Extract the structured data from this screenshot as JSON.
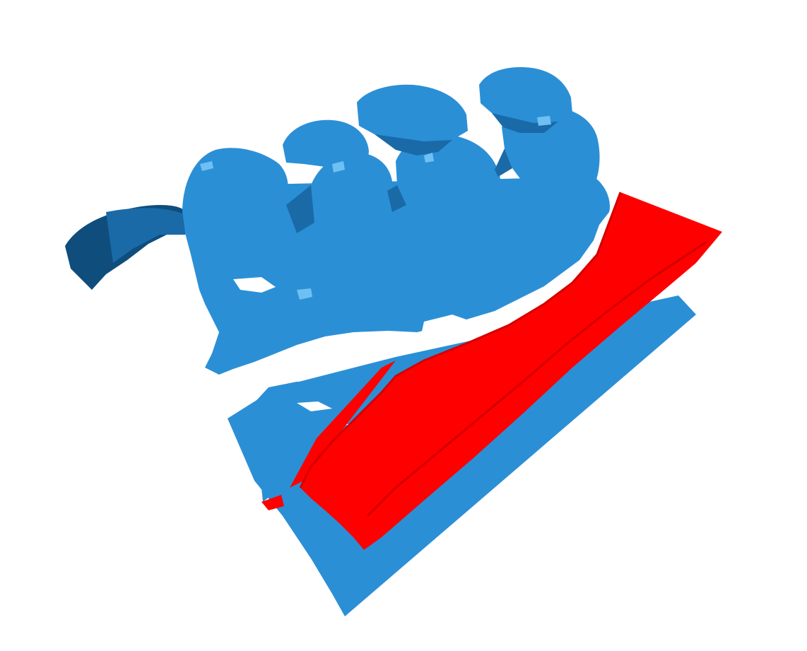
{
  "scene": {
    "background_color": "#ffffff",
    "colors": {
      "mesh_main": "#2b8fd6",
      "mesh_shadow": "#1a6aa8",
      "mesh_dark": "#0f4d7c",
      "mesh_highlight": "#6fc0f2",
      "section_plane": "#ff0000",
      "section_plane_edge": "#d40000",
      "base_plane": "#2b8fd6"
    },
    "objects": [
      {
        "name": "dental-arch-mesh",
        "color": "mesh_main"
      },
      {
        "name": "section-plane",
        "color": "section_plane"
      },
      {
        "name": "base-plane",
        "color": "base_plane"
      }
    ]
  }
}
